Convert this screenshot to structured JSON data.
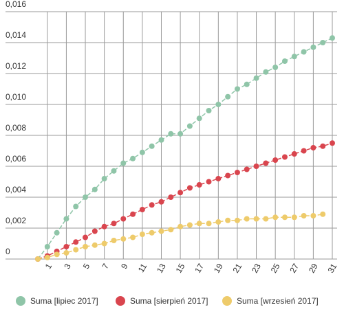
{
  "chart_data": {
    "type": "line",
    "x": [
      0,
      1,
      2,
      3,
      4,
      5,
      6,
      7,
      8,
      9,
      10,
      11,
      12,
      13,
      14,
      15,
      16,
      17,
      18,
      19,
      20,
      21,
      22,
      23,
      24,
      25,
      26,
      27,
      28,
      29,
      30,
      31
    ],
    "xlim": [
      0,
      31
    ],
    "xticks": [
      1,
      3,
      5,
      7,
      9,
      11,
      13,
      15,
      17,
      19,
      21,
      23,
      25,
      27,
      29,
      31
    ],
    "ylim": [
      0,
      0.016
    ],
    "yticks": [
      0,
      {
        "value": 0.002,
        "label": "0,002"
      },
      {
        "value": 0.004,
        "label": "0,004"
      },
      {
        "value": 0.006,
        "label": "0,006"
      },
      {
        "value": 0.008,
        "label": "0,008"
      },
      {
        "value": 0.01,
        "label": "0,010"
      },
      {
        "value": 0.012,
        "label": "0,012"
      },
      {
        "value": 0.014,
        "label": "0,014"
      },
      {
        "value": 0.016,
        "label": "0,016"
      }
    ],
    "grid": true,
    "legend": "bottom",
    "series": [
      {
        "name": "Suma [lipiec 2017]",
        "color": "#8fc5a8",
        "values": [
          0,
          0.0008,
          0.0017,
          0.0026,
          0.0034,
          0.004,
          0.0045,
          0.0052,
          0.0057,
          0.0062,
          0.0065,
          0.0069,
          0.0073,
          0.0077,
          0.0081,
          0.0081,
          0.0086,
          0.0091,
          0.0096,
          0.01,
          0.0105,
          0.011,
          0.0113,
          0.0117,
          0.0121,
          0.0124,
          0.0128,
          0.0131,
          0.0134,
          0.0137,
          0.014,
          0.0143
        ]
      },
      {
        "name": "Suma [sierpień 2017]",
        "color": "#d9454e",
        "values": [
          0,
          0.0002,
          0.0005,
          0.0008,
          0.0011,
          0.0014,
          0.0018,
          0.0021,
          0.0023,
          0.0026,
          0.0029,
          0.0032,
          0.0035,
          0.0037,
          0.004,
          0.0043,
          0.0046,
          0.0048,
          0.005,
          0.0052,
          0.0054,
          0.0056,
          0.0058,
          0.006,
          0.0062,
          0.0064,
          0.0066,
          0.0068,
          0.007,
          0.0072,
          0.0073,
          0.0075
        ]
      },
      {
        "name": "Suma [wrzesień 2017]",
        "color": "#eecb6b",
        "values": [
          0,
          0.0001,
          0.0003,
          0.0004,
          0.0006,
          0.0008,
          0.0009,
          0.001,
          0.0012,
          0.0013,
          0.0014,
          0.0016,
          0.0017,
          0.0018,
          0.0019,
          0.0021,
          0.0022,
          0.0023,
          0.0023,
          0.0024,
          0.0025,
          0.0025,
          0.0026,
          0.0026,
          0.0026,
          0.0027,
          0.0027,
          0.0027,
          0.0028,
          0.0028,
          0.0029,
          null
        ]
      }
    ]
  }
}
